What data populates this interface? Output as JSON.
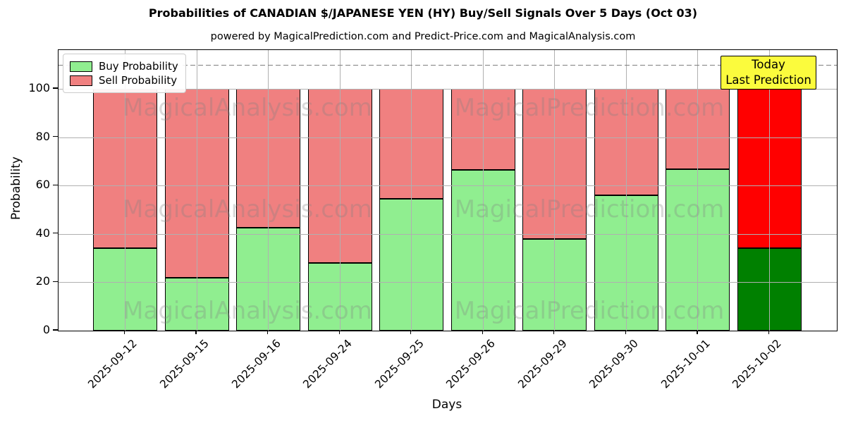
{
  "chart_data": {
    "type": "bar",
    "stacked": true,
    "title": "Probabilities of CANADIAN $/JAPANESE YEN (HY) Buy/Sell Signals Over 5 Days (Oct 03)",
    "subtitle": "powered by MagicalPrediction.com and Predict-Price.com and MagicalAnalysis.com",
    "xlabel": "Days",
    "ylabel": "Probability",
    "categories": [
      "2025-09-12",
      "2025-09-15",
      "2025-09-16",
      "2025-09-24",
      "2025-09-25",
      "2025-09-26",
      "2025-09-29",
      "2025-09-30",
      "2025-10-01",
      "2025-10-02"
    ],
    "series": [
      {
        "name": "Buy Probability",
        "color": "#90ee90",
        "values": [
          34,
          22,
          42.5,
          28,
          54.5,
          66.5,
          38,
          56,
          66.7,
          34
        ]
      },
      {
        "name": "Sell Probability",
        "color": "#f08080",
        "values": [
          66,
          78,
          57.5,
          72,
          45.5,
          33.5,
          62,
          44,
          33.3,
          66
        ]
      }
    ],
    "last_bar_colors": {
      "buy": "#008000",
      "sell": "#ff0000"
    },
    "ylim": [
      0,
      116
    ],
    "yticks": [
      0,
      20,
      40,
      60,
      80,
      100
    ],
    "dashed_line_y": 110,
    "grid": true,
    "legend_position": "upper left",
    "annotation": {
      "line1": "Today",
      "line2": "Last Prediction",
      "target_category": "2025-10-02",
      "bg_color": "#fbfb3d"
    },
    "watermark_texts": [
      "MagicalAnalysis.com",
      "MagicalPrediction.com"
    ]
  },
  "colors": {
    "grid": "#b0b0b0",
    "dashed_line": "#7f7f7f",
    "bar_edge": "#000000",
    "watermark": "rgba(128,128,128,0.3)"
  }
}
